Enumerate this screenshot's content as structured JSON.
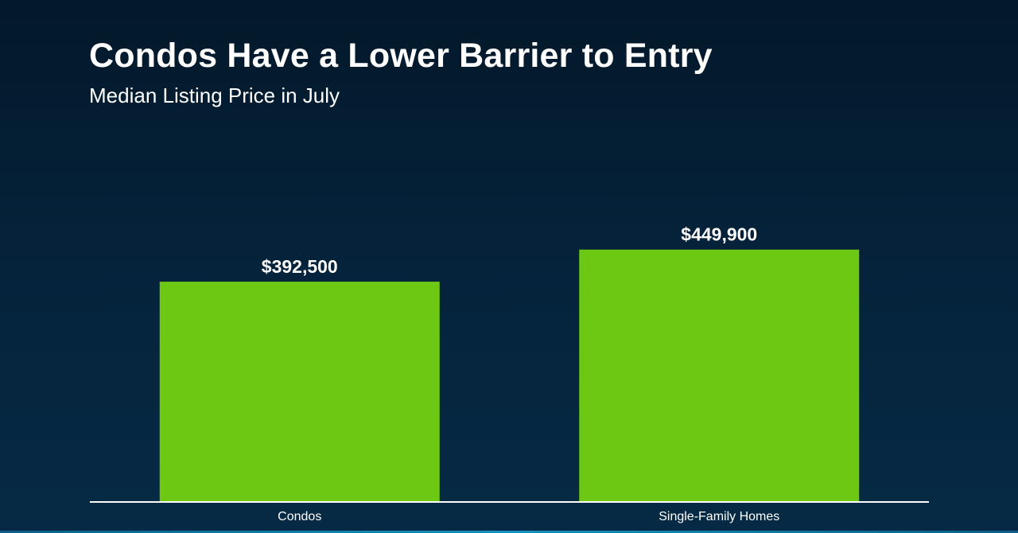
{
  "header": {
    "title": "Condos Have a Lower Barrier to Entry",
    "subtitle": "Median Listing Price in July"
  },
  "colors": {
    "bar": "#6cc812",
    "axis": "#ffffff",
    "text": "#ffffff"
  },
  "chart_data": {
    "type": "bar",
    "title": "Condos Have a Lower Barrier to Entry",
    "subtitle": "Median Listing Price in July",
    "categories": [
      "Condos",
      "Single-Family Homes"
    ],
    "values": [
      392500,
      449900
    ],
    "value_labels": [
      "$392,500",
      "$449,900"
    ],
    "xlabel": "",
    "ylabel": "",
    "ylim": [
      0,
      680000
    ],
    "grid": false,
    "legend": "none"
  }
}
